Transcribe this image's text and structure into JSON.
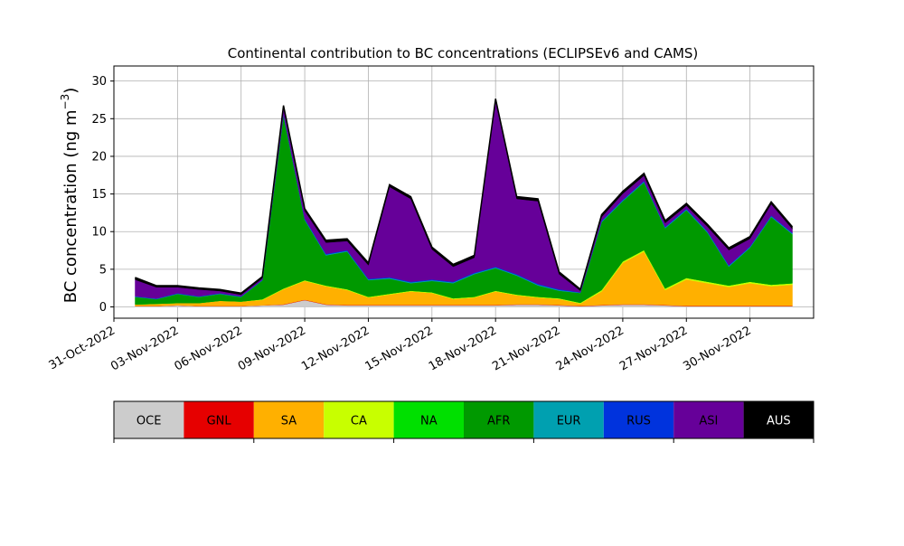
{
  "chart_data": {
    "type": "area",
    "title": "Continental contribution to BC concentrations (ECLIPSEv6 and CAMS)",
    "ylabel": "BC concentration (ng m",
    "ylabel_exponent": "−3",
    "ylabel_close": ")",
    "xlabel": "",
    "ylim": [
      -1.5,
      32
    ],
    "xlim": [
      "2022-10-31",
      "2022-12-03"
    ],
    "grid": true,
    "stacked": true,
    "y_ticks": [
      0,
      5,
      10,
      15,
      20,
      25,
      30
    ],
    "x_ticks": [
      "2022-10-31",
      "2022-11-03",
      "2022-11-06",
      "2022-11-09",
      "2022-11-12",
      "2022-11-15",
      "2022-11-18",
      "2022-11-21",
      "2022-11-24",
      "2022-11-27",
      "2022-11-30"
    ],
    "x_tick_labels": [
      "31-Oct-2022",
      "03-Nov-2022",
      "06-Nov-2022",
      "09-Nov-2022",
      "12-Nov-2022",
      "15-Nov-2022",
      "18-Nov-2022",
      "21-Nov-2022",
      "24-Nov-2022",
      "27-Nov-2022",
      "30-Nov-2022"
    ],
    "x": [
      "2022-11-01",
      "2022-11-02",
      "2022-11-03",
      "2022-11-04",
      "2022-11-05",
      "2022-11-06",
      "2022-11-07",
      "2022-11-08",
      "2022-11-09",
      "2022-11-10",
      "2022-11-11",
      "2022-11-12",
      "2022-11-13",
      "2022-11-14",
      "2022-11-15",
      "2022-11-16",
      "2022-11-17",
      "2022-11-18",
      "2022-11-19",
      "2022-11-20",
      "2022-11-21",
      "2022-11-22",
      "2022-11-23",
      "2022-11-24",
      "2022-11-25",
      "2022-11-26",
      "2022-11-27",
      "2022-11-28",
      "2022-11-29",
      "2022-11-30",
      "2022-12-01",
      "2022-12-02"
    ],
    "series": [
      {
        "name": "OCE",
        "color": "#cccccc",
        "values": [
          0.1,
          0.1,
          0.2,
          0.1,
          0.1,
          0.1,
          0.2,
          0.3,
          0.9,
          0.3,
          0.2,
          0.2,
          0.2,
          0.2,
          0.2,
          0.2,
          0.2,
          0.2,
          0.3,
          0.3,
          0.2,
          0.1,
          0.2,
          0.3,
          0.3,
          0.2,
          0.1,
          0.1,
          0.1,
          0.1,
          0.1,
          0.1
        ]
      },
      {
        "name": "GNL",
        "color": "#e60000",
        "values": [
          0.02,
          0.02,
          0.02,
          0.02,
          0.02,
          0.02,
          0.02,
          0.05,
          0.05,
          0.05,
          0.05,
          0.05,
          0.05,
          0.05,
          0.05,
          0.05,
          0.05,
          0.05,
          0.05,
          0.05,
          0.05,
          0.05,
          0.05,
          0.05,
          0.05,
          0.05,
          0.05,
          0.05,
          0.05,
          0.05,
          0.05,
          0.05
        ]
      },
      {
        "name": "SA",
        "color": "#ffb000",
        "values": [
          0.2,
          0.3,
          0.3,
          0.4,
          0.7,
          0.6,
          0.7,
          2.0,
          2.5,
          2.4,
          2.0,
          1.0,
          1.4,
          1.8,
          1.6,
          0.8,
          1.0,
          1.8,
          1.2,
          0.9,
          0.8,
          0.3,
          1.8,
          5.5,
          7.0,
          2.0,
          3.5,
          3.0,
          2.5,
          3.0,
          2.6,
          2.8
        ]
      },
      {
        "name": "CA",
        "color": "#c8ff00",
        "values": [
          0,
          0,
          0,
          0,
          0,
          0,
          0.1,
          0.1,
          0.1,
          0.1,
          0.1,
          0.1,
          0.1,
          0.1,
          0.1,
          0.1,
          0.1,
          0.1,
          0.1,
          0.1,
          0.1,
          0.1,
          0.2,
          0.2,
          0.2,
          0.2,
          0.2,
          0.2,
          0.2,
          0.2,
          0.2,
          0.2
        ]
      },
      {
        "name": "NA",
        "color": "#00e000",
        "values": [
          0,
          0,
          0,
          0,
          0,
          0,
          0,
          0,
          0,
          0,
          0,
          0,
          0,
          0,
          0,
          0,
          0,
          0,
          0,
          0,
          0,
          0,
          0,
          0,
          0,
          0,
          0,
          0,
          0,
          0,
          0,
          0
        ]
      },
      {
        "name": "AFR",
        "color": "#009900",
        "values": [
          1.0,
          0.6,
          1.2,
          0.8,
          0.9,
          0.6,
          2.5,
          23.0,
          8.0,
          4.0,
          5.0,
          2.2,
          2.0,
          1.0,
          1.5,
          2.0,
          3.0,
          3.0,
          2.5,
          1.5,
          1.0,
          1.3,
          9.0,
          8.0,
          9.0,
          8.0,
          9.0,
          6.5,
          2.5,
          4.5,
          9.0,
          6.5
        ]
      },
      {
        "name": "EUR",
        "color": "#00a0b0",
        "values": [
          0.05,
          0.05,
          0.05,
          0.05,
          0.05,
          0.05,
          0.05,
          0.1,
          0.1,
          0.1,
          0.1,
          0.1,
          0.1,
          0.1,
          0.1,
          0.1,
          0.1,
          0.1,
          0.1,
          0.1,
          0.1,
          0.05,
          0.1,
          0.1,
          0.1,
          0.1,
          0.1,
          0.1,
          0.1,
          0.1,
          0.1,
          0.1
        ]
      },
      {
        "name": "RUS",
        "color": "#0033dd",
        "values": [
          0.05,
          0.05,
          0.05,
          0.05,
          0.05,
          0.05,
          0.05,
          0.1,
          0.1,
          0.1,
          0.1,
          0.1,
          0.1,
          0.1,
          0.1,
          0.1,
          0.1,
          0.1,
          0.1,
          0.1,
          0.1,
          0.05,
          0.1,
          0.1,
          0.1,
          0.1,
          0.1,
          0.1,
          0.1,
          0.1,
          0.1,
          0.1
        ]
      },
      {
        "name": "ASI",
        "color": "#660099",
        "values": [
          2.2,
          1.5,
          0.8,
          0.9,
          0.3,
          0.2,
          0.2,
          0.8,
          1.0,
          1.5,
          1.2,
          1.8,
          12.0,
          11.0,
          4.0,
          2.0,
          2.0,
          22.0,
          10.0,
          11.0,
          2.0,
          0.2,
          0.5,
          0.8,
          0.7,
          0.5,
          0.4,
          0.6,
          2.0,
          1.0,
          1.5,
          0.5
        ]
      },
      {
        "name": "AUS",
        "color": "#000000",
        "values": [
          0.3,
          0.2,
          0.2,
          0.2,
          0.2,
          0.2,
          0.2,
          0.3,
          0.3,
          0.3,
          0.3,
          0.3,
          0.3,
          0.3,
          0.3,
          0.3,
          0.3,
          0.3,
          0.3,
          0.3,
          0.3,
          0.2,
          0.3,
          0.3,
          0.3,
          0.3,
          0.3,
          0.3,
          0.3,
          0.3,
          0.3,
          0.3
        ]
      }
    ]
  }
}
